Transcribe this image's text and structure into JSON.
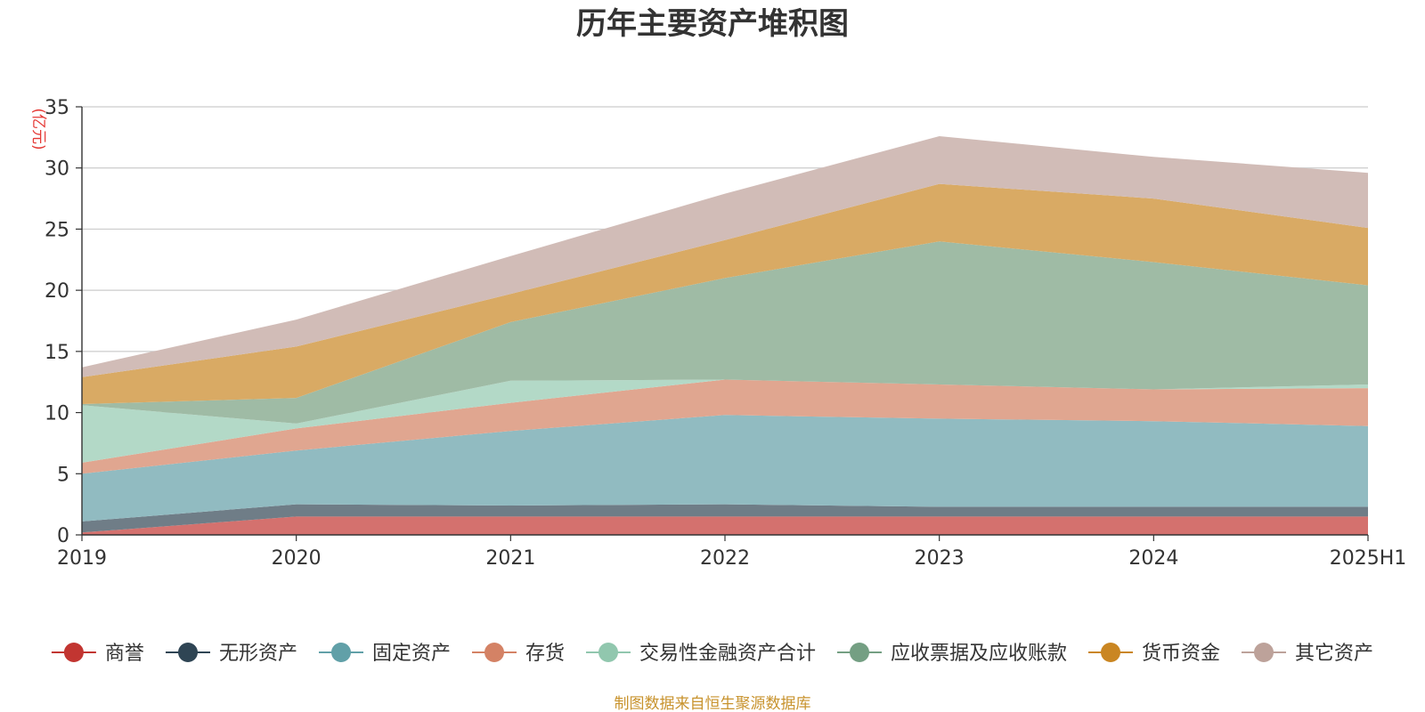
{
  "chart_data": {
    "type": "area",
    "stacked": true,
    "title": "历年主要资产堆积图",
    "unit_label": "(亿元)",
    "source_text": "制图数据来自恒生聚源数据库",
    "categories": [
      "2019",
      "2020",
      "2021",
      "2022",
      "2023",
      "2024",
      "2025H1"
    ],
    "ylim": [
      0,
      35
    ],
    "yticks": [
      0,
      5,
      10,
      15,
      20,
      25,
      30,
      35
    ],
    "grid": true,
    "legend_position": "bottom",
    "series": [
      {
        "name": "商誉",
        "color": "#c23531",
        "fill": "#d4716e",
        "values": [
          0.2,
          1.5,
          1.5,
          1.5,
          1.5,
          1.5,
          1.5
        ]
      },
      {
        "name": "无形资产",
        "color": "#2f4554",
        "fill": "#6f7d87",
        "values": [
          0.9,
          1.0,
          0.9,
          1.0,
          0.8,
          0.8,
          0.8
        ]
      },
      {
        "name": "固定资产",
        "color": "#61a0a8",
        "fill": "#91bbc1",
        "values": [
          3.9,
          4.4,
          6.1,
          7.3,
          7.2,
          7.0,
          6.6
        ]
      },
      {
        "name": "存货",
        "color": "#d48265",
        "fill": "#e0a690",
        "values": [
          0.9,
          1.8,
          2.3,
          2.9,
          2.8,
          2.6,
          3.1
        ]
      },
      {
        "name": "交易性金融资产合计",
        "color": "#91c7ae",
        "fill": "#b3d9c7",
        "values": [
          4.7,
          0.4,
          1.8,
          0.0,
          0.0,
          0.0,
          0.3
        ]
      },
      {
        "name": "应收票据及应收账款",
        "color": "#749f83",
        "fill": "#9fbba5",
        "values": [
          0.1,
          2.1,
          4.8,
          8.3,
          11.7,
          10.4,
          8.1
        ]
      },
      {
        "name": "货币资金",
        "color": "#ca8622",
        "fill": "#d9aa64",
        "values": [
          2.2,
          4.2,
          2.3,
          3.1,
          4.7,
          5.2,
          4.7
        ]
      },
      {
        "name": "其它资产",
        "color": "#bda29a",
        "fill": "#d1bcb7",
        "values": [
          0.8,
          2.2,
          3.1,
          3.8,
          3.9,
          3.4,
          4.5
        ]
      }
    ]
  }
}
